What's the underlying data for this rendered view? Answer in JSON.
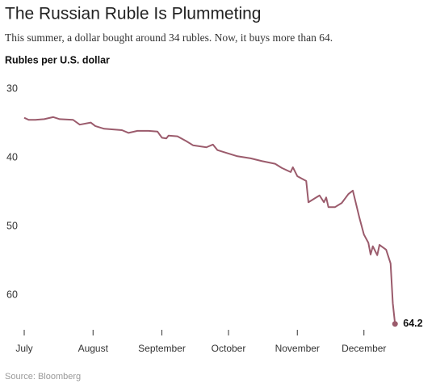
{
  "chart_data": {
    "type": "line",
    "title": "The Russian Ruble Is Plummeting",
    "subtitle": "This summer, a dollar bought around 34 rubles. Now, it buys more than 64.",
    "y_label": "Rubles per U.S. dollar",
    "source": "Source: Bloomberg",
    "x": [
      0,
      2,
      5,
      9,
      13,
      16,
      22,
      25,
      30,
      32,
      36,
      44,
      47,
      51,
      56,
      60,
      62,
      64,
      65,
      69,
      73,
      76,
      82,
      85,
      87,
      92,
      96,
      102,
      107,
      113,
      116,
      120,
      121,
      123,
      127,
      128,
      131,
      133,
      135,
      136,
      137,
      140,
      143,
      146,
      148,
      151,
      153,
      155,
      156,
      157,
      159,
      160,
      163,
      165,
      166,
      167
    ],
    "series": [
      {
        "name": "Rubles per U.S. dollar",
        "color": "#9b5b6c",
        "values": [
          34.2,
          34.5,
          34.5,
          34.4,
          34.1,
          34.4,
          34.5,
          35.2,
          34.9,
          35.4,
          35.8,
          36.0,
          36.4,
          36.1,
          36.1,
          36.2,
          37.1,
          37.2,
          36.8,
          36.9,
          37.6,
          38.2,
          38.5,
          38.1,
          38.9,
          39.4,
          39.8,
          40.1,
          40.5,
          40.9,
          41.5,
          42.1,
          41.4,
          42.7,
          43.4,
          46.5,
          45.9,
          45.5,
          46.5,
          45.8,
          47.2,
          47.2,
          46.6,
          45.3,
          44.8,
          48.8,
          51.2,
          52.4,
          54.1,
          52.9,
          54.2,
          52.7,
          53.4,
          55.4,
          61.2,
          64.2
        ],
        "end_label": "64.2"
      }
    ],
    "xlim": [
      0,
      170
    ],
    "xticks": [
      {
        "value": 0,
        "label": "July"
      },
      {
        "value": 31,
        "label": "August"
      },
      {
        "value": 62,
        "label": "September"
      },
      {
        "value": 92,
        "label": "October"
      },
      {
        "value": 123,
        "label": "November"
      },
      {
        "value": 153,
        "label": "December"
      }
    ],
    "ylim": [
      30,
      66
    ],
    "yticks": [
      30,
      40,
      50,
      60
    ],
    "y_inverted": true,
    "grid": false
  }
}
